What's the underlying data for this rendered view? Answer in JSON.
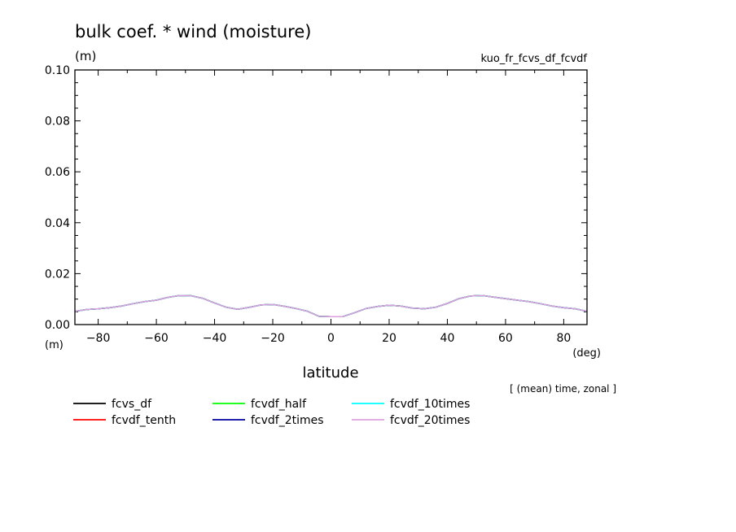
{
  "chart_data": {
    "type": "line",
    "title": "bulk coef. * wind (moisture)",
    "y_unit_top": "(m)",
    "experiment": "kuo_fr_fcvs_df_fcvdf",
    "y_unit_bottom": "(m)",
    "x_unit": "(deg)",
    "xlabel": "latitude",
    "note": "[ (mean) time, zonal ]",
    "xlim": [
      -88,
      88
    ],
    "ylim": [
      0,
      0.1
    ],
    "x_ticks": [
      -80,
      -60,
      -40,
      -20,
      0,
      20,
      40,
      60,
      80
    ],
    "x_tick_labels": [
      "−80",
      "−60",
      "−40",
      "−20",
      "0",
      "20",
      "40",
      "60",
      "80"
    ],
    "y_ticks": [
      0,
      0.02,
      0.04,
      0.06,
      0.08,
      0.1
    ],
    "y_tick_labels": [
      "0.00",
      "0.02",
      "0.04",
      "0.06",
      "0.08",
      "0.10"
    ],
    "x": [
      -88,
      -84,
      -80,
      -76,
      -72,
      -68,
      -64,
      -60,
      -56,
      -52,
      -48,
      -44,
      -40,
      -36,
      -32,
      -28,
      -24,
      -20,
      -16,
      -12,
      -8,
      -4,
      0,
      4,
      8,
      12,
      16,
      20,
      24,
      28,
      32,
      36,
      40,
      44,
      48,
      52,
      56,
      60,
      64,
      68,
      72,
      76,
      80,
      84,
      88
    ],
    "series": [
      {
        "name": "fcvs_df",
        "color": "#000000",
        "values": [
          0.0052,
          0.0059,
          0.0062,
          0.0066,
          0.0073,
          0.0082,
          0.009,
          0.0096,
          0.0107,
          0.0114,
          0.0113,
          0.0103,
          0.0085,
          0.0068,
          0.006,
          0.0068,
          0.0077,
          0.0079,
          0.0072,
          0.0063,
          0.0052,
          0.0032,
          0.0031,
          0.0031,
          0.0046,
          0.0063,
          0.0071,
          0.0076,
          0.0073,
          0.0065,
          0.0062,
          0.0068,
          0.0083,
          0.0102,
          0.0112,
          0.0114,
          0.0108,
          0.0102,
          0.0096,
          0.009,
          0.0082,
          0.0073,
          0.0066,
          0.0062,
          0.0052
        ]
      },
      {
        "name": "fcvdf_tenth",
        "color": "#ff0000",
        "values": [
          0.0052,
          0.0059,
          0.0062,
          0.0066,
          0.0073,
          0.0082,
          0.009,
          0.0096,
          0.0107,
          0.0114,
          0.0113,
          0.0103,
          0.0085,
          0.0068,
          0.006,
          0.0068,
          0.0077,
          0.0079,
          0.0072,
          0.0063,
          0.0052,
          0.0032,
          0.0031,
          0.0031,
          0.0046,
          0.0063,
          0.0071,
          0.0076,
          0.0073,
          0.0065,
          0.0062,
          0.0068,
          0.0083,
          0.0102,
          0.0112,
          0.0114,
          0.0108,
          0.0102,
          0.0096,
          0.009,
          0.0082,
          0.0073,
          0.0066,
          0.0062,
          0.0052
        ]
      },
      {
        "name": "fcvdf_half",
        "color": "#00ff00",
        "values": [
          0.0052,
          0.0059,
          0.0062,
          0.0066,
          0.0073,
          0.0082,
          0.009,
          0.0096,
          0.0107,
          0.0114,
          0.0113,
          0.0103,
          0.0085,
          0.0068,
          0.006,
          0.0068,
          0.0077,
          0.0079,
          0.0072,
          0.0063,
          0.0052,
          0.0032,
          0.0031,
          0.0031,
          0.0046,
          0.0063,
          0.0071,
          0.0076,
          0.0073,
          0.0065,
          0.0062,
          0.0068,
          0.0083,
          0.0102,
          0.0112,
          0.0114,
          0.0108,
          0.0102,
          0.0096,
          0.009,
          0.0082,
          0.0073,
          0.0066,
          0.0062,
          0.0052
        ]
      },
      {
        "name": "fcvdf_2times",
        "color": "#0000a0",
        "values": [
          0.0052,
          0.0059,
          0.0062,
          0.0066,
          0.0073,
          0.0082,
          0.009,
          0.0096,
          0.0107,
          0.0114,
          0.0113,
          0.0103,
          0.0085,
          0.0068,
          0.006,
          0.0068,
          0.0077,
          0.0079,
          0.0072,
          0.0063,
          0.0052,
          0.0032,
          0.0031,
          0.0031,
          0.0046,
          0.0063,
          0.0071,
          0.0076,
          0.0073,
          0.0065,
          0.0062,
          0.0068,
          0.0083,
          0.0102,
          0.0112,
          0.0114,
          0.0108,
          0.0102,
          0.0096,
          0.009,
          0.0082,
          0.0073,
          0.0066,
          0.0062,
          0.0052
        ]
      },
      {
        "name": "fcvdf_10times",
        "color": "#00ffff",
        "values": [
          0.0052,
          0.0059,
          0.0062,
          0.0066,
          0.0073,
          0.0082,
          0.009,
          0.0096,
          0.0107,
          0.0114,
          0.0113,
          0.0103,
          0.0085,
          0.0068,
          0.006,
          0.0068,
          0.0077,
          0.0079,
          0.0072,
          0.0063,
          0.0052,
          0.0032,
          0.0031,
          0.0031,
          0.0046,
          0.0063,
          0.0071,
          0.0076,
          0.0073,
          0.0065,
          0.0062,
          0.0068,
          0.0083,
          0.0102,
          0.0112,
          0.0114,
          0.0108,
          0.0102,
          0.0096,
          0.009,
          0.0082,
          0.0073,
          0.0066,
          0.0062,
          0.0052
        ]
      },
      {
        "name": "fcvdf_20times",
        "color": "#dda0dd",
        "values": [
          0.0052,
          0.0059,
          0.0062,
          0.0066,
          0.0073,
          0.0082,
          0.009,
          0.0096,
          0.0107,
          0.0114,
          0.0113,
          0.0103,
          0.0085,
          0.0068,
          0.006,
          0.0068,
          0.0077,
          0.0079,
          0.0072,
          0.0063,
          0.0052,
          0.0032,
          0.0031,
          0.0031,
          0.0046,
          0.0063,
          0.0071,
          0.0076,
          0.0073,
          0.0065,
          0.0062,
          0.0068,
          0.0083,
          0.0102,
          0.0112,
          0.0114,
          0.0108,
          0.0102,
          0.0096,
          0.009,
          0.0082,
          0.0073,
          0.0066,
          0.0062,
          0.0052
        ]
      }
    ],
    "legend_position": "bottom",
    "grid": false
  }
}
